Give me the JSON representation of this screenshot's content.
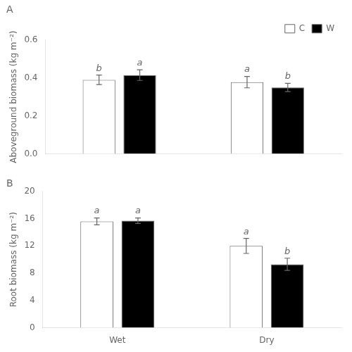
{
  "chart_data": [
    {
      "type": "bar",
      "title": "A",
      "ylabel": "Aboveground biomass (kg m⁻²)",
      "categories": [
        null,
        null
      ],
      "series": [
        {
          "name": "C",
          "color": "#ffffff",
          "values": [
            0.39,
            0.378
          ],
          "errors": [
            0.025,
            0.03
          ],
          "annotations": [
            "b",
            "a"
          ]
        },
        {
          "name": "W",
          "color": "#000000",
          "values": [
            0.415,
            0.35
          ],
          "errors": [
            0.028,
            0.022
          ],
          "annotations": [
            "a",
            "b"
          ]
        }
      ],
      "ylim": [
        0,
        0.6
      ],
      "yticks": [
        {
          "value": 0,
          "label": "0.0"
        },
        0.2,
        0.4,
        0.6
      ],
      "grid": false,
      "legend": "upper right"
    },
    {
      "type": "bar",
      "title": "B",
      "ylabel": "Root biomass (kg m⁻²)",
      "categories": [
        "Wet",
        "Dry"
      ],
      "series": [
        {
          "name": "C",
          "color": "#ffffff",
          "values": [
            15.6,
            12.0
          ],
          "errors": [
            0.5,
            1.1
          ],
          "annotations": [
            "a",
            "a"
          ]
        },
        {
          "name": "W",
          "color": "#000000",
          "values": [
            15.7,
            9.3
          ],
          "errors": [
            0.4,
            0.9
          ],
          "annotations": [
            "a",
            "b"
          ]
        }
      ],
      "ylim": [
        0,
        20
      ],
      "yticks": [
        0,
        4,
        8,
        12,
        16,
        20
      ],
      "grid": false
    }
  ]
}
